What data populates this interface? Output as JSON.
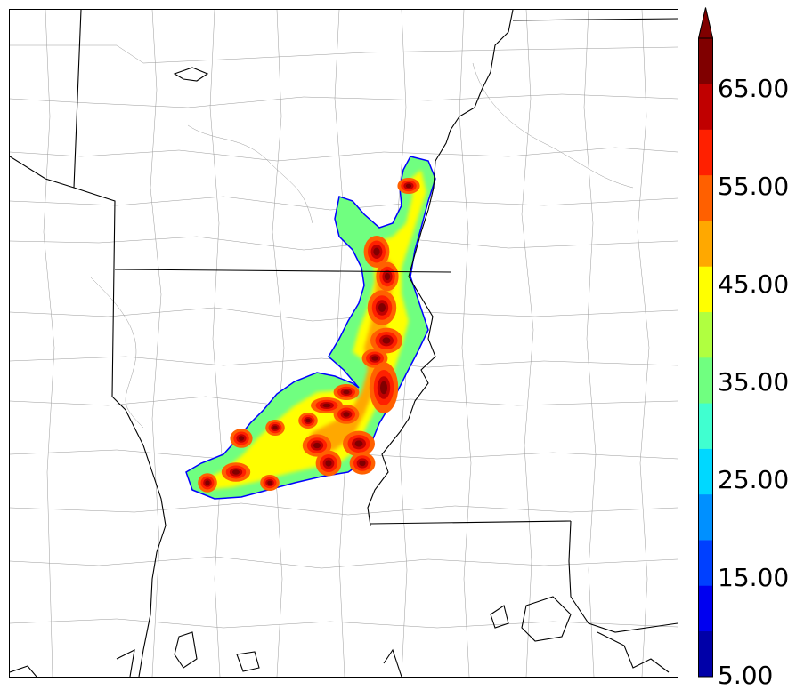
{
  "colorbar": {
    "labels": [
      "65.00",
      "55.00",
      "45.00",
      "35.00",
      "25.00",
      "15.00",
      "5.00"
    ],
    "levels": [
      5,
      10,
      15,
      20,
      25,
      30,
      35,
      40,
      45,
      50,
      55,
      60,
      65,
      70
    ],
    "colors": [
      "#0000a8",
      "#0000f0",
      "#0040ff",
      "#0090ff",
      "#00d8ff",
      "#40ffd0",
      "#70ff80",
      "#b0ff40",
      "#ffff00",
      "#ffa800",
      "#ff6000",
      "#ff2000",
      "#c00000",
      "#800000"
    ],
    "extend": "max"
  },
  "map": {
    "boundary_color": "#000000",
    "county_color": "#9a9a9a",
    "field_min_color": "#0000ff"
  }
}
